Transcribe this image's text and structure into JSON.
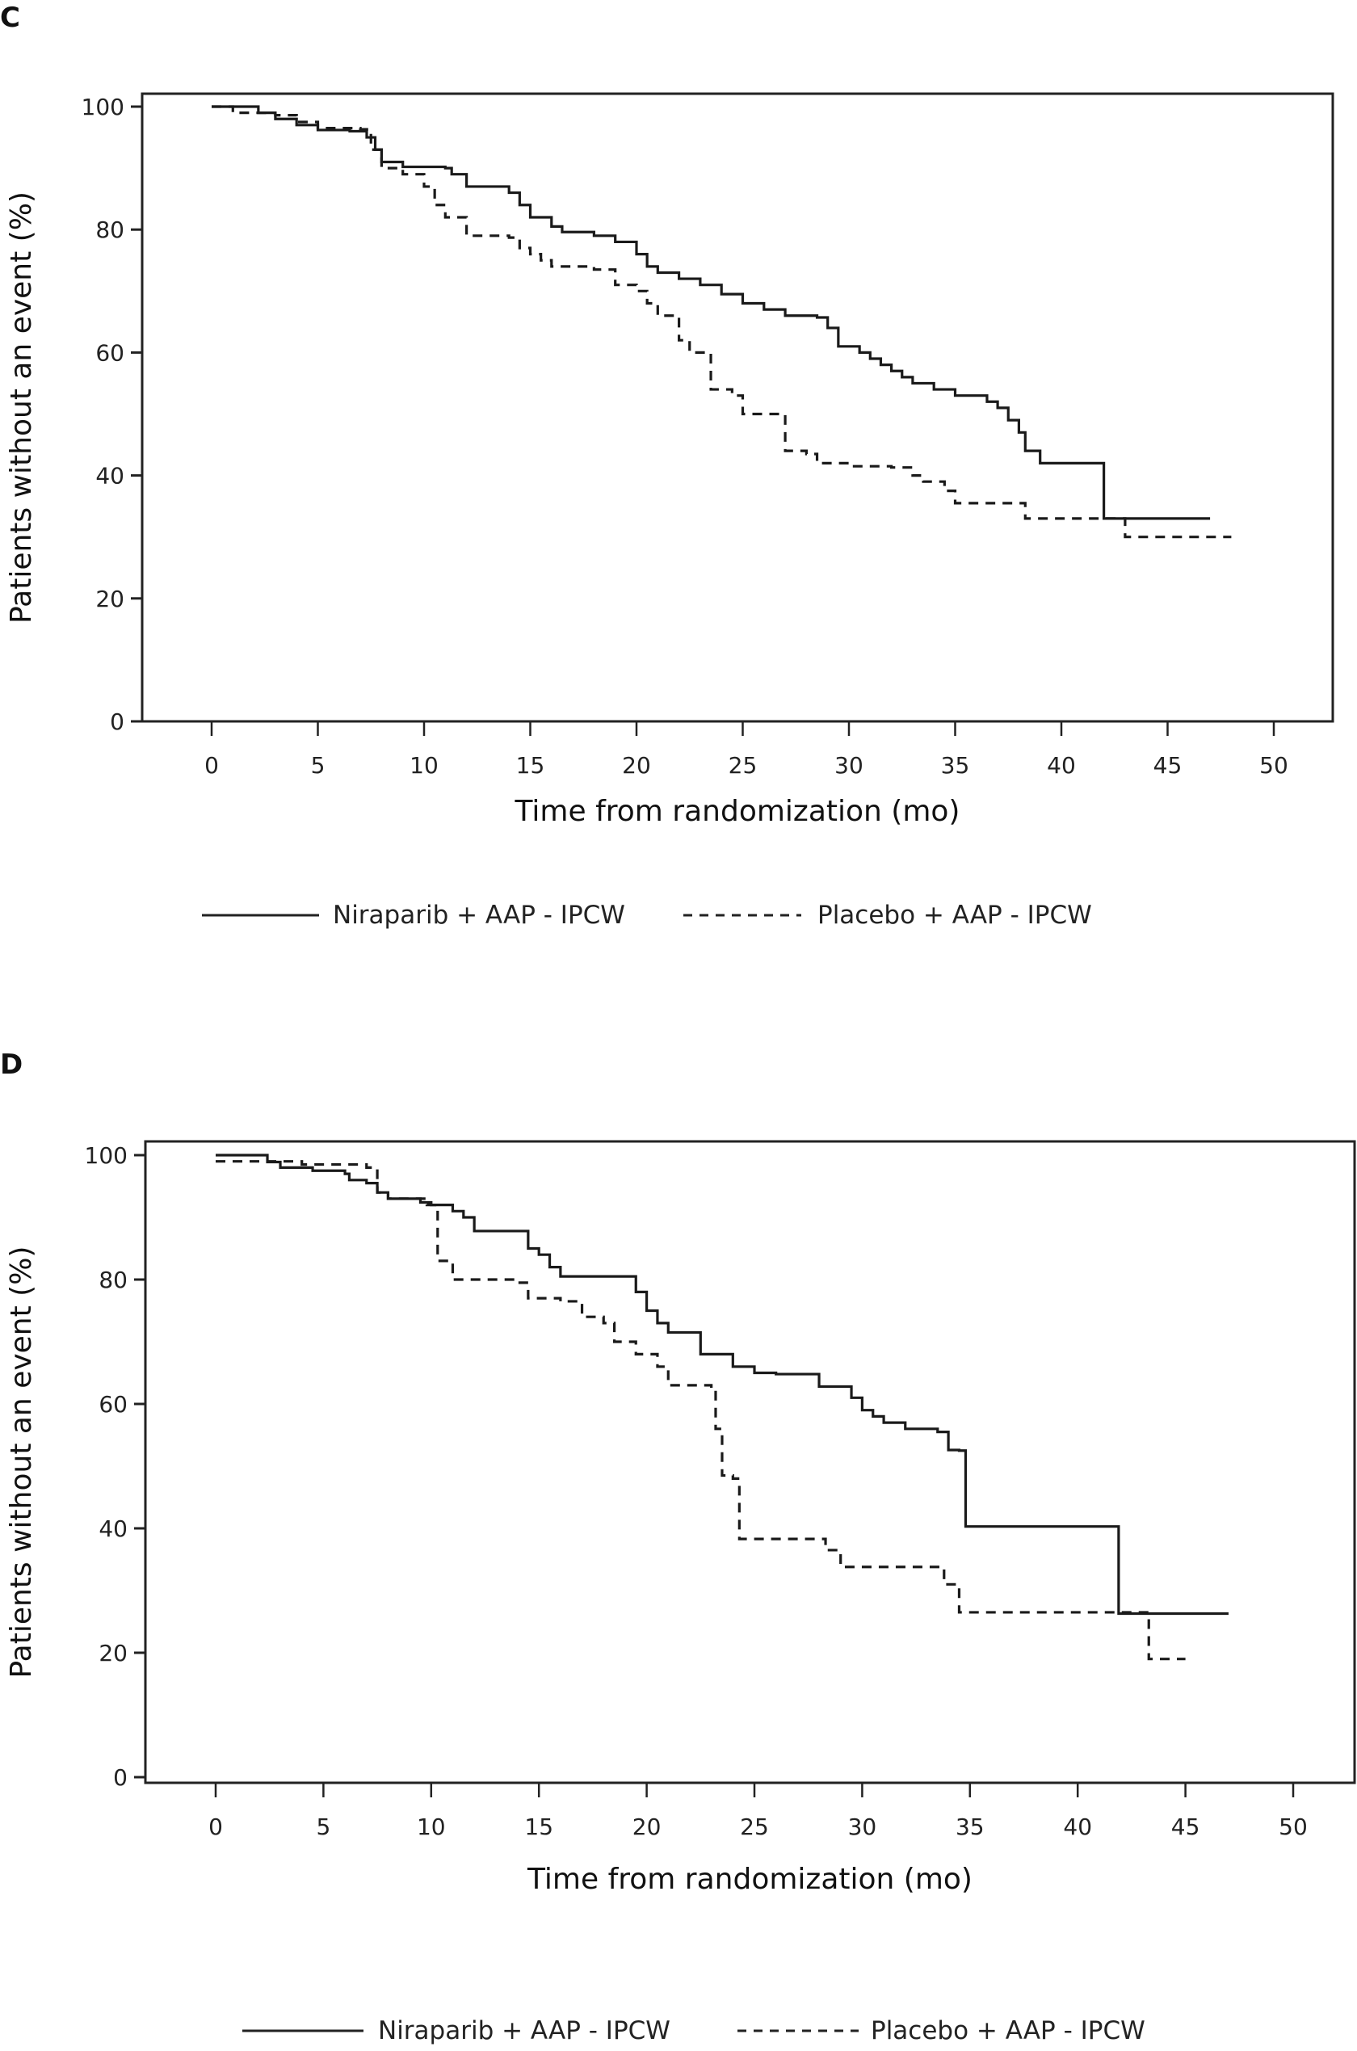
{
  "chart_data": [
    {
      "panel": "C",
      "type": "line",
      "subtype": "kaplan-meier step",
      "title": "",
      "xlabel": "Time from randomization (mo)",
      "ylabel": "Patients without an event (%)",
      "xlim": [
        -3,
        52
      ],
      "ylim": [
        0,
        100
      ],
      "xticks": [
        "0",
        "5",
        "10",
        "15",
        "20",
        "25",
        "30",
        "35",
        "40",
        "45",
        "50"
      ],
      "yticks": [
        "0",
        "20",
        "40",
        "60",
        "80",
        "100"
      ],
      "grid": false,
      "legend_position": "bottom",
      "series": [
        {
          "name": "Niraparib + AAP - IPCW",
          "style": "solid",
          "color": "#1a1a1a",
          "points": [
            [
              0,
              100
            ],
            [
              2,
              100
            ],
            [
              2.2,
              99
            ],
            [
              3,
              98
            ],
            [
              4,
              97
            ],
            [
              5,
              96.2
            ],
            [
              6.5,
              96
            ],
            [
              7.3,
              95
            ],
            [
              7.7,
              93
            ],
            [
              8,
              91
            ],
            [
              9,
              90.2
            ],
            [
              11,
              90
            ],
            [
              11.3,
              89
            ],
            [
              12,
              87
            ],
            [
              14,
              86
            ],
            [
              14.5,
              84
            ],
            [
              15,
              82
            ],
            [
              16,
              80.5
            ],
            [
              16.5,
              79.6
            ],
            [
              18,
              79
            ],
            [
              19,
              78
            ],
            [
              20,
              76
            ],
            [
              20.5,
              74
            ],
            [
              21,
              73
            ],
            [
              22,
              72
            ],
            [
              23,
              71
            ],
            [
              24,
              69.5
            ],
            [
              25,
              68
            ],
            [
              26,
              67
            ],
            [
              27,
              66
            ],
            [
              28.5,
              65.7
            ],
            [
              29,
              64
            ],
            [
              29.5,
              61
            ],
            [
              30.5,
              60
            ],
            [
              31,
              59
            ],
            [
              31.5,
              58
            ],
            [
              32,
              57
            ],
            [
              32.5,
              56
            ],
            [
              33,
              55
            ],
            [
              34,
              54
            ],
            [
              35,
              53
            ],
            [
              36.5,
              52
            ],
            [
              37,
              51
            ],
            [
              37.5,
              49
            ],
            [
              38,
              47
            ],
            [
              38.3,
              44
            ],
            [
              39,
              42
            ],
            [
              42,
              42
            ],
            [
              42,
              33
            ],
            [
              47,
              33
            ]
          ]
        },
        {
          "name": "Placebo + AAP - IPCW",
          "style": "dashed",
          "color": "#1a1a1a",
          "points": [
            [
              0,
              100
            ],
            [
              1,
              99
            ],
            [
              3,
              98.6
            ],
            [
              4,
              97.5
            ],
            [
              5,
              96.5
            ],
            [
              7,
              96.3
            ],
            [
              7.5,
              93
            ],
            [
              8,
              90
            ],
            [
              9,
              89
            ],
            [
              10,
              87
            ],
            [
              10.5,
              84
            ],
            [
              11,
              82
            ],
            [
              12,
              79
            ],
            [
              14,
              78.7
            ],
            [
              14.5,
              77
            ],
            [
              15,
              76
            ],
            [
              15.5,
              75
            ],
            [
              16,
              74
            ],
            [
              18,
              73.5
            ],
            [
              19,
              71
            ],
            [
              20,
              70
            ],
            [
              20.5,
              68
            ],
            [
              21,
              66
            ],
            [
              22,
              62
            ],
            [
              22.5,
              60
            ],
            [
              23.5,
              59.5
            ],
            [
              23.5,
              54
            ],
            [
              24.5,
              53
            ],
            [
              25,
              50
            ],
            [
              27,
              50
            ],
            [
              27,
              44
            ],
            [
              28,
              43.5
            ],
            [
              28.5,
              42
            ],
            [
              30,
              41.5
            ],
            [
              32,
              41.3
            ],
            [
              33,
              40
            ],
            [
              33.5,
              39
            ],
            [
              34.5,
              37.5
            ],
            [
              35,
              35.5
            ],
            [
              38,
              35.5
            ],
            [
              38.3,
              33
            ],
            [
              43,
              33
            ],
            [
              43,
              30
            ],
            [
              48,
              30
            ]
          ]
        }
      ]
    },
    {
      "panel": "D",
      "type": "line",
      "subtype": "kaplan-meier step",
      "title": "",
      "xlabel": "Time from randomization (mo)",
      "ylabel": "Patients without an event (%)",
      "xlim": [
        -3,
        52
      ],
      "ylim": [
        0,
        100
      ],
      "xticks": [
        "0",
        "5",
        "10",
        "15",
        "20",
        "25",
        "30",
        "35",
        "40",
        "45",
        "50"
      ],
      "yticks": [
        "0",
        "20",
        "40",
        "60",
        "80",
        "100"
      ],
      "grid": false,
      "legend_position": "bottom",
      "series": [
        {
          "name": "Niraparib + AAP - IPCW",
          "style": "solid",
          "color": "#1a1a1a",
          "points": [
            [
              0,
              100
            ],
            [
              2.2,
              100
            ],
            [
              2.4,
              98.9
            ],
            [
              3,
              98
            ],
            [
              4.5,
              97.5
            ],
            [
              6,
              97
            ],
            [
              6.2,
              96
            ],
            [
              7,
              95.5
            ],
            [
              7.5,
              94
            ],
            [
              8,
              93
            ],
            [
              9.5,
              92.4
            ],
            [
              10,
              92
            ],
            [
              11,
              91
            ],
            [
              11.5,
              90
            ],
            [
              12,
              87.8
            ],
            [
              14.5,
              87.8
            ],
            [
              14.5,
              85
            ],
            [
              15,
              84
            ],
            [
              15.5,
              82
            ],
            [
              16,
              80.5
            ],
            [
              19,
              80.5
            ],
            [
              19.5,
              78
            ],
            [
              20,
              75
            ],
            [
              20.5,
              73
            ],
            [
              21,
              71.5
            ],
            [
              22,
              71.5
            ],
            [
              22.5,
              68
            ],
            [
              23.5,
              68
            ],
            [
              24,
              66
            ],
            [
              25,
              65
            ],
            [
              26,
              64.8
            ],
            [
              26,
              64.8
            ],
            [
              28,
              64.8
            ],
            [
              28,
              62.8
            ],
            [
              29.5,
              62.8
            ],
            [
              29.5,
              61
            ],
            [
              30,
              59
            ],
            [
              30.5,
              58
            ],
            [
              31,
              57
            ],
            [
              32,
              56
            ],
            [
              33.5,
              55.5
            ],
            [
              34,
              52.6
            ],
            [
              34.5,
              52.5
            ],
            [
              34.8,
              40.3
            ],
            [
              41.9,
              40.3
            ],
            [
              41.9,
              26.3
            ],
            [
              47,
              26.3
            ]
          ]
        },
        {
          "name": "Placebo + AAP - IPCW",
          "style": "dashed",
          "color": "#1a1a1a",
          "points": [
            [
              0,
              99
            ],
            [
              2,
              99
            ],
            [
              4,
              98.5
            ],
            [
              7,
              98
            ],
            [
              7.5,
              96
            ],
            [
              7.5,
              94
            ],
            [
              8,
              93
            ],
            [
              9.8,
              92
            ],
            [
              10.3,
              83
            ],
            [
              11,
              80
            ],
            [
              14,
              79.5
            ],
            [
              14.5,
              77
            ],
            [
              16,
              76.5
            ],
            [
              17,
              74
            ],
            [
              18,
              73
            ],
            [
              18.5,
              70
            ],
            [
              19.5,
              68
            ],
            [
              20.5,
              66
            ],
            [
              21,
              63
            ],
            [
              23,
              62.8
            ],
            [
              23.2,
              56
            ],
            [
              23.5,
              48.5
            ],
            [
              24,
              48
            ],
            [
              24.3,
              38.3
            ],
            [
              28,
              38.3
            ],
            [
              28.3,
              36.5
            ],
            [
              29,
              33.8
            ],
            [
              33.5,
              33.8
            ],
            [
              33.8,
              31
            ],
            [
              34.5,
              26.5
            ],
            [
              43.3,
              26.5
            ],
            [
              43.3,
              19
            ],
            [
              45,
              19
            ]
          ]
        }
      ]
    }
  ],
  "panels": [
    {
      "letter": "C"
    },
    {
      "letter": "D"
    }
  ],
  "legend": {
    "series1": "Niraparib + AAP - IPCW",
    "series2": "Placebo + AAP - IPCW"
  }
}
